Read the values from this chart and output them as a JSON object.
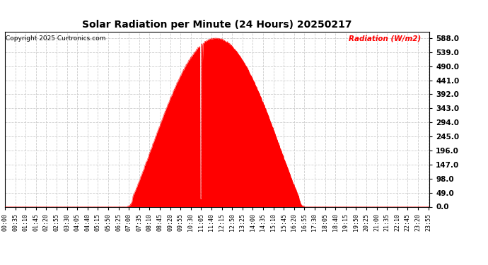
{
  "title": "Solar Radiation per Minute (24 Hours) 20250217",
  "copyright": "Copyright 2025 Curtronics.com",
  "ylabel": "Radiation (W/m2)",
  "ylabel_color": "#ff0000",
  "background_color": "#ffffff",
  "fill_color": "#ff0000",
  "line_color": "#ff0000",
  "grid_color": "#cccccc",
  "yticks": [
    0.0,
    49.0,
    98.0,
    147.0,
    196.0,
    245.0,
    294.0,
    343.0,
    392.0,
    441.0,
    490.0,
    539.0,
    588.0
  ],
  "ymax": 610,
  "ymin": 0,
  "total_minutes": 1440,
  "sunrise_minute": 415,
  "sunset_minute": 1015,
  "peak_minute": 690,
  "peak_value": 588.0,
  "xtick_step": 35,
  "figwidth": 6.9,
  "figheight": 3.75,
  "dpi": 100
}
